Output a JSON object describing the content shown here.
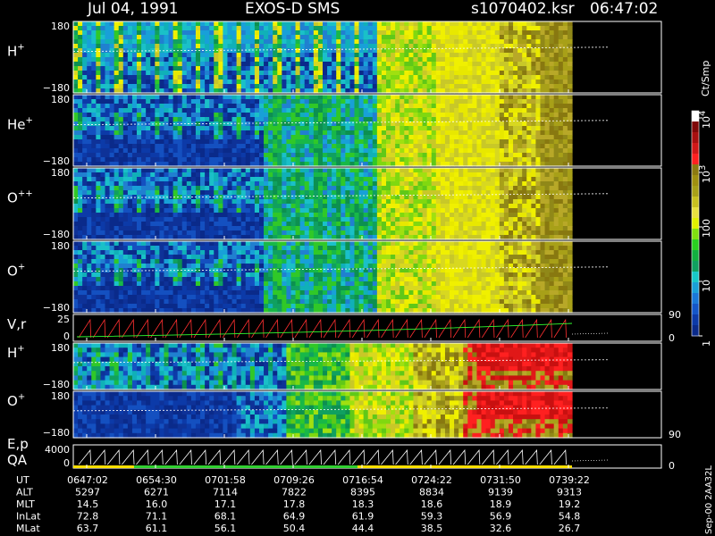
{
  "header": {
    "date": "Jul 04, 1991",
    "mission": "EXOS-D SMS",
    "file": "s1070402.ksr",
    "time": "06:47:02"
  },
  "chart_data": {
    "type": "heatmap",
    "panels": [
      {
        "label": "H",
        "charge": "+",
        "ymax": "180",
        "ymin": "−180"
      },
      {
        "label": "He",
        "charge": "+",
        "ymax": "180",
        "ymin": "−180"
      },
      {
        "label": "O",
        "charge": "++",
        "ymax": "180",
        "ymin": "−180"
      },
      {
        "label": "O",
        "charge": "+",
        "ymax": "180",
        "ymin": "−180"
      },
      {
        "label": "V,r",
        "ymax": "25",
        "ymin": "0",
        "right_top": "90",
        "right_bottom": "0"
      },
      {
        "label": "H",
        "charge": "+",
        "ymax": "180",
        "ymin": "−180"
      },
      {
        "label": "O",
        "charge": "+",
        "ymax": "180",
        "ymin": "−180",
        "right_bottom": "90"
      },
      {
        "label": "E,p",
        "label2": "QA",
        "ymax": "4000",
        "ymin": "0",
        "right_bottom": "0"
      }
    ],
    "colorbar": {
      "unit": "Ct/Smp",
      "ticks": [
        {
          "base": "10",
          "exp": "4",
          "value": 10000
        },
        {
          "base": "10",
          "exp": "3",
          "value": 1000
        },
        {
          "label": "100",
          "value": 100
        },
        {
          "label": "10",
          "value": 10
        },
        {
          "label": "1",
          "value": 1
        }
      ],
      "colors": [
        "#0a2a8a",
        "#0c3aa8",
        "#1456c8",
        "#1a78d8",
        "#1aa0d8",
        "#18c8c8",
        "#10a060",
        "#12b040",
        "#2ad020",
        "#80e010",
        "#e0f000",
        "#e8e040",
        "#c8c020",
        "#a8a018",
        "#a09010",
        "#8c7a10",
        "#ff2020",
        "#d01818",
        "#a81010",
        "#800808",
        "#ffffff"
      ]
    },
    "time_axis": {
      "x": [
        "0647:02",
        "0654:30",
        "0701:58",
        "0709:26",
        "0716:54",
        "0724:22",
        "0731:50",
        "0739:22"
      ]
    }
  },
  "footer": {
    "rows": [
      {
        "label": "UT",
        "values": [
          "0647:02",
          "0654:30",
          "0701:58",
          "0709:26",
          "0716:54",
          "0724:22",
          "0731:50",
          "0739:22"
        ]
      },
      {
        "label": "ALT",
        "values": [
          "5297",
          "6271",
          "7114",
          "7822",
          "8395",
          "8834",
          "9139",
          "9313"
        ]
      },
      {
        "label": "MLT",
        "values": [
          "14.5",
          "16.0",
          "17.1",
          "17.8",
          "18.3",
          "18.6",
          "18.9",
          "19.2"
        ]
      },
      {
        "label": "InLat",
        "values": [
          "72.8",
          "71.1",
          "68.1",
          "64.9",
          "61.9",
          "59.3",
          "56.9",
          "54.8"
        ]
      },
      {
        "label": "MLat",
        "values": [
          "63.7",
          "61.1",
          "56.1",
          "50.4",
          "44.4",
          "38.5",
          "32.6",
          "26.7"
        ]
      }
    ],
    "stamp": "Sep-00  2AA32L"
  }
}
